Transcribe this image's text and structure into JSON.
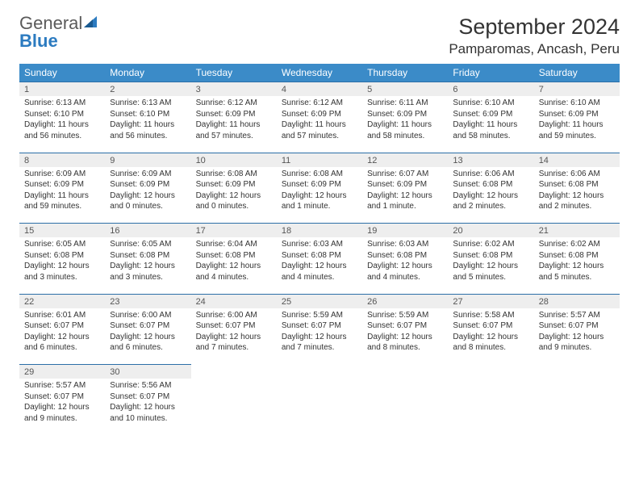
{
  "logo": {
    "text1": "General",
    "text2": "Blue"
  },
  "title": "September 2024",
  "location": "Pamparomas, Ancash, Peru",
  "dayHeaders": [
    "Sunday",
    "Monday",
    "Tuesday",
    "Wednesday",
    "Thursday",
    "Friday",
    "Saturday"
  ],
  "colors": {
    "headerBg": "#3b8bc8",
    "dayNumBg": "#eeeeee",
    "borderTop": "#2c6fa8",
    "logoBlue": "#2c7bc0"
  },
  "weeks": [
    [
      {
        "n": "1",
        "sr": "Sunrise: 6:13 AM",
        "ss": "Sunset: 6:10 PM",
        "dl1": "Daylight: 11 hours",
        "dl2": "and 56 minutes."
      },
      {
        "n": "2",
        "sr": "Sunrise: 6:13 AM",
        "ss": "Sunset: 6:10 PM",
        "dl1": "Daylight: 11 hours",
        "dl2": "and 56 minutes."
      },
      {
        "n": "3",
        "sr": "Sunrise: 6:12 AM",
        "ss": "Sunset: 6:09 PM",
        "dl1": "Daylight: 11 hours",
        "dl2": "and 57 minutes."
      },
      {
        "n": "4",
        "sr": "Sunrise: 6:12 AM",
        "ss": "Sunset: 6:09 PM",
        "dl1": "Daylight: 11 hours",
        "dl2": "and 57 minutes."
      },
      {
        "n": "5",
        "sr": "Sunrise: 6:11 AM",
        "ss": "Sunset: 6:09 PM",
        "dl1": "Daylight: 11 hours",
        "dl2": "and 58 minutes."
      },
      {
        "n": "6",
        "sr": "Sunrise: 6:10 AM",
        "ss": "Sunset: 6:09 PM",
        "dl1": "Daylight: 11 hours",
        "dl2": "and 58 minutes."
      },
      {
        "n": "7",
        "sr": "Sunrise: 6:10 AM",
        "ss": "Sunset: 6:09 PM",
        "dl1": "Daylight: 11 hours",
        "dl2": "and 59 minutes."
      }
    ],
    [
      {
        "n": "8",
        "sr": "Sunrise: 6:09 AM",
        "ss": "Sunset: 6:09 PM",
        "dl1": "Daylight: 11 hours",
        "dl2": "and 59 minutes."
      },
      {
        "n": "9",
        "sr": "Sunrise: 6:09 AM",
        "ss": "Sunset: 6:09 PM",
        "dl1": "Daylight: 12 hours",
        "dl2": "and 0 minutes."
      },
      {
        "n": "10",
        "sr": "Sunrise: 6:08 AM",
        "ss": "Sunset: 6:09 PM",
        "dl1": "Daylight: 12 hours",
        "dl2": "and 0 minutes."
      },
      {
        "n": "11",
        "sr": "Sunrise: 6:08 AM",
        "ss": "Sunset: 6:09 PM",
        "dl1": "Daylight: 12 hours",
        "dl2": "and 1 minute."
      },
      {
        "n": "12",
        "sr": "Sunrise: 6:07 AM",
        "ss": "Sunset: 6:09 PM",
        "dl1": "Daylight: 12 hours",
        "dl2": "and 1 minute."
      },
      {
        "n": "13",
        "sr": "Sunrise: 6:06 AM",
        "ss": "Sunset: 6:08 PM",
        "dl1": "Daylight: 12 hours",
        "dl2": "and 2 minutes."
      },
      {
        "n": "14",
        "sr": "Sunrise: 6:06 AM",
        "ss": "Sunset: 6:08 PM",
        "dl1": "Daylight: 12 hours",
        "dl2": "and 2 minutes."
      }
    ],
    [
      {
        "n": "15",
        "sr": "Sunrise: 6:05 AM",
        "ss": "Sunset: 6:08 PM",
        "dl1": "Daylight: 12 hours",
        "dl2": "and 3 minutes."
      },
      {
        "n": "16",
        "sr": "Sunrise: 6:05 AM",
        "ss": "Sunset: 6:08 PM",
        "dl1": "Daylight: 12 hours",
        "dl2": "and 3 minutes."
      },
      {
        "n": "17",
        "sr": "Sunrise: 6:04 AM",
        "ss": "Sunset: 6:08 PM",
        "dl1": "Daylight: 12 hours",
        "dl2": "and 4 minutes."
      },
      {
        "n": "18",
        "sr": "Sunrise: 6:03 AM",
        "ss": "Sunset: 6:08 PM",
        "dl1": "Daylight: 12 hours",
        "dl2": "and 4 minutes."
      },
      {
        "n": "19",
        "sr": "Sunrise: 6:03 AM",
        "ss": "Sunset: 6:08 PM",
        "dl1": "Daylight: 12 hours",
        "dl2": "and 4 minutes."
      },
      {
        "n": "20",
        "sr": "Sunrise: 6:02 AM",
        "ss": "Sunset: 6:08 PM",
        "dl1": "Daylight: 12 hours",
        "dl2": "and 5 minutes."
      },
      {
        "n": "21",
        "sr": "Sunrise: 6:02 AM",
        "ss": "Sunset: 6:08 PM",
        "dl1": "Daylight: 12 hours",
        "dl2": "and 5 minutes."
      }
    ],
    [
      {
        "n": "22",
        "sr": "Sunrise: 6:01 AM",
        "ss": "Sunset: 6:07 PM",
        "dl1": "Daylight: 12 hours",
        "dl2": "and 6 minutes."
      },
      {
        "n": "23",
        "sr": "Sunrise: 6:00 AM",
        "ss": "Sunset: 6:07 PM",
        "dl1": "Daylight: 12 hours",
        "dl2": "and 6 minutes."
      },
      {
        "n": "24",
        "sr": "Sunrise: 6:00 AM",
        "ss": "Sunset: 6:07 PM",
        "dl1": "Daylight: 12 hours",
        "dl2": "and 7 minutes."
      },
      {
        "n": "25",
        "sr": "Sunrise: 5:59 AM",
        "ss": "Sunset: 6:07 PM",
        "dl1": "Daylight: 12 hours",
        "dl2": "and 7 minutes."
      },
      {
        "n": "26",
        "sr": "Sunrise: 5:59 AM",
        "ss": "Sunset: 6:07 PM",
        "dl1": "Daylight: 12 hours",
        "dl2": "and 8 minutes."
      },
      {
        "n": "27",
        "sr": "Sunrise: 5:58 AM",
        "ss": "Sunset: 6:07 PM",
        "dl1": "Daylight: 12 hours",
        "dl2": "and 8 minutes."
      },
      {
        "n": "28",
        "sr": "Sunrise: 5:57 AM",
        "ss": "Sunset: 6:07 PM",
        "dl1": "Daylight: 12 hours",
        "dl2": "and 9 minutes."
      }
    ],
    [
      {
        "n": "29",
        "sr": "Sunrise: 5:57 AM",
        "ss": "Sunset: 6:07 PM",
        "dl1": "Daylight: 12 hours",
        "dl2": "and 9 minutes."
      },
      {
        "n": "30",
        "sr": "Sunrise: 5:56 AM",
        "ss": "Sunset: 6:07 PM",
        "dl1": "Daylight: 12 hours",
        "dl2": "and 10 minutes."
      },
      null,
      null,
      null,
      null,
      null
    ]
  ]
}
